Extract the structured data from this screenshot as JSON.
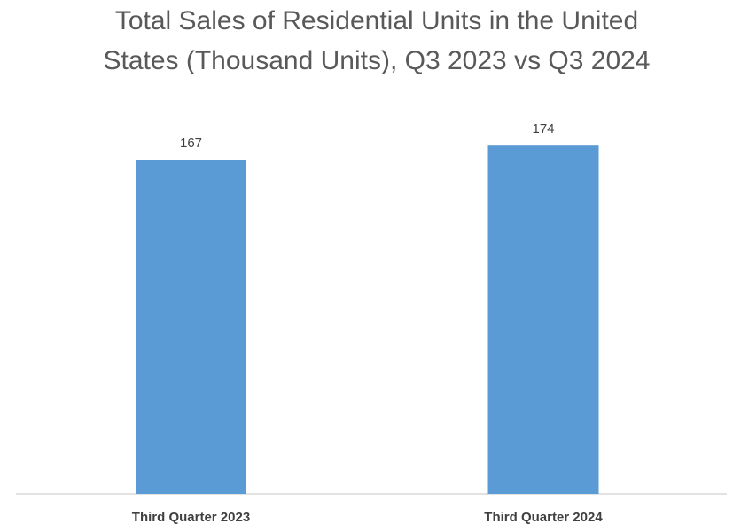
{
  "chart_data": {
    "type": "bar",
    "title_lines": [
      "Total Sales of Residential Units in the United",
      "States (Thousand Units), Q3 2023 vs Q3 2024"
    ],
    "categories": [
      "Third Quarter 2023",
      "Third Quarter 2024"
    ],
    "values": [
      167,
      174
    ],
    "value_labels": [
      "167",
      "174"
    ],
    "xlabel": "",
    "ylabel": "",
    "ylim": [
      0,
      200
    ],
    "grid": false,
    "legend": "none",
    "bar_color": "#5B9BD5",
    "axis_color": "#D9D9D9",
    "title_color": "#595959",
    "label_color": "#404040"
  }
}
